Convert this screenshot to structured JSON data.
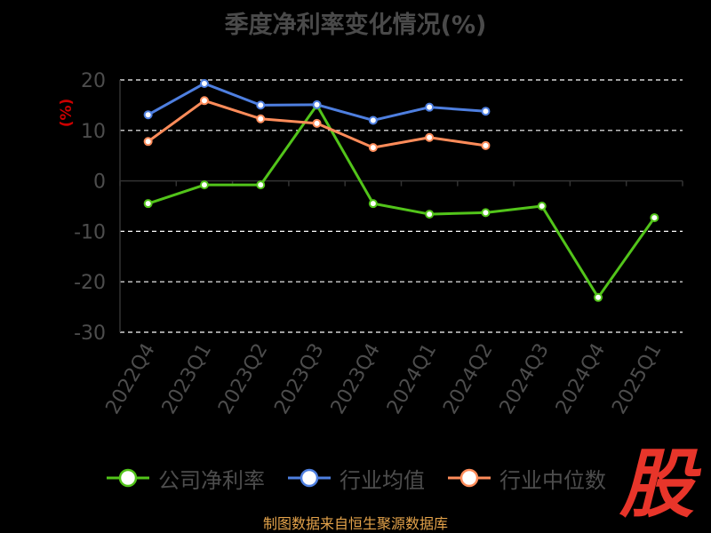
{
  "title": "季度净利率变化情况(%)",
  "source": "制图数据来自恒生聚源数据库",
  "logo_text": "股",
  "colors": {
    "company": "#52c41a",
    "industry_avg": "#4e7fe0",
    "industry_median": "#ff8c5a",
    "axis_text": "#4d4d4d",
    "ylabel": "#cc0000",
    "grid": "#ffffff"
  },
  "chart_data": {
    "type": "line",
    "title": "季度净利率变化情况(%)",
    "xlabel": "",
    "ylabel": "(%)",
    "ylim": [
      -30,
      20
    ],
    "yticks": [
      20,
      10,
      0,
      -10,
      -20,
      -30
    ],
    "grid": true,
    "legend": "bottom",
    "categories": [
      "2022Q4",
      "2023Q1",
      "2023Q2",
      "2023Q3",
      "2023Q4",
      "2024Q1",
      "2024Q2",
      "2024Q3",
      "2024Q4",
      "2025Q1"
    ],
    "series": [
      {
        "name": "公司净利率",
        "values": [
          -4.5,
          -0.8,
          -0.8,
          15.0,
          -4.5,
          -6.6,
          -6.3,
          -5.0,
          -23.1,
          -7.3
        ]
      },
      {
        "name": "行业均值",
        "values": [
          13.1,
          19.3,
          15.0,
          15.1,
          12.0,
          14.6,
          13.8,
          null,
          null,
          null
        ]
      },
      {
        "name": "行业中位数",
        "values": [
          7.8,
          15.9,
          12.3,
          11.4,
          6.6,
          8.6,
          7.0,
          null,
          null,
          null
        ]
      }
    ]
  }
}
